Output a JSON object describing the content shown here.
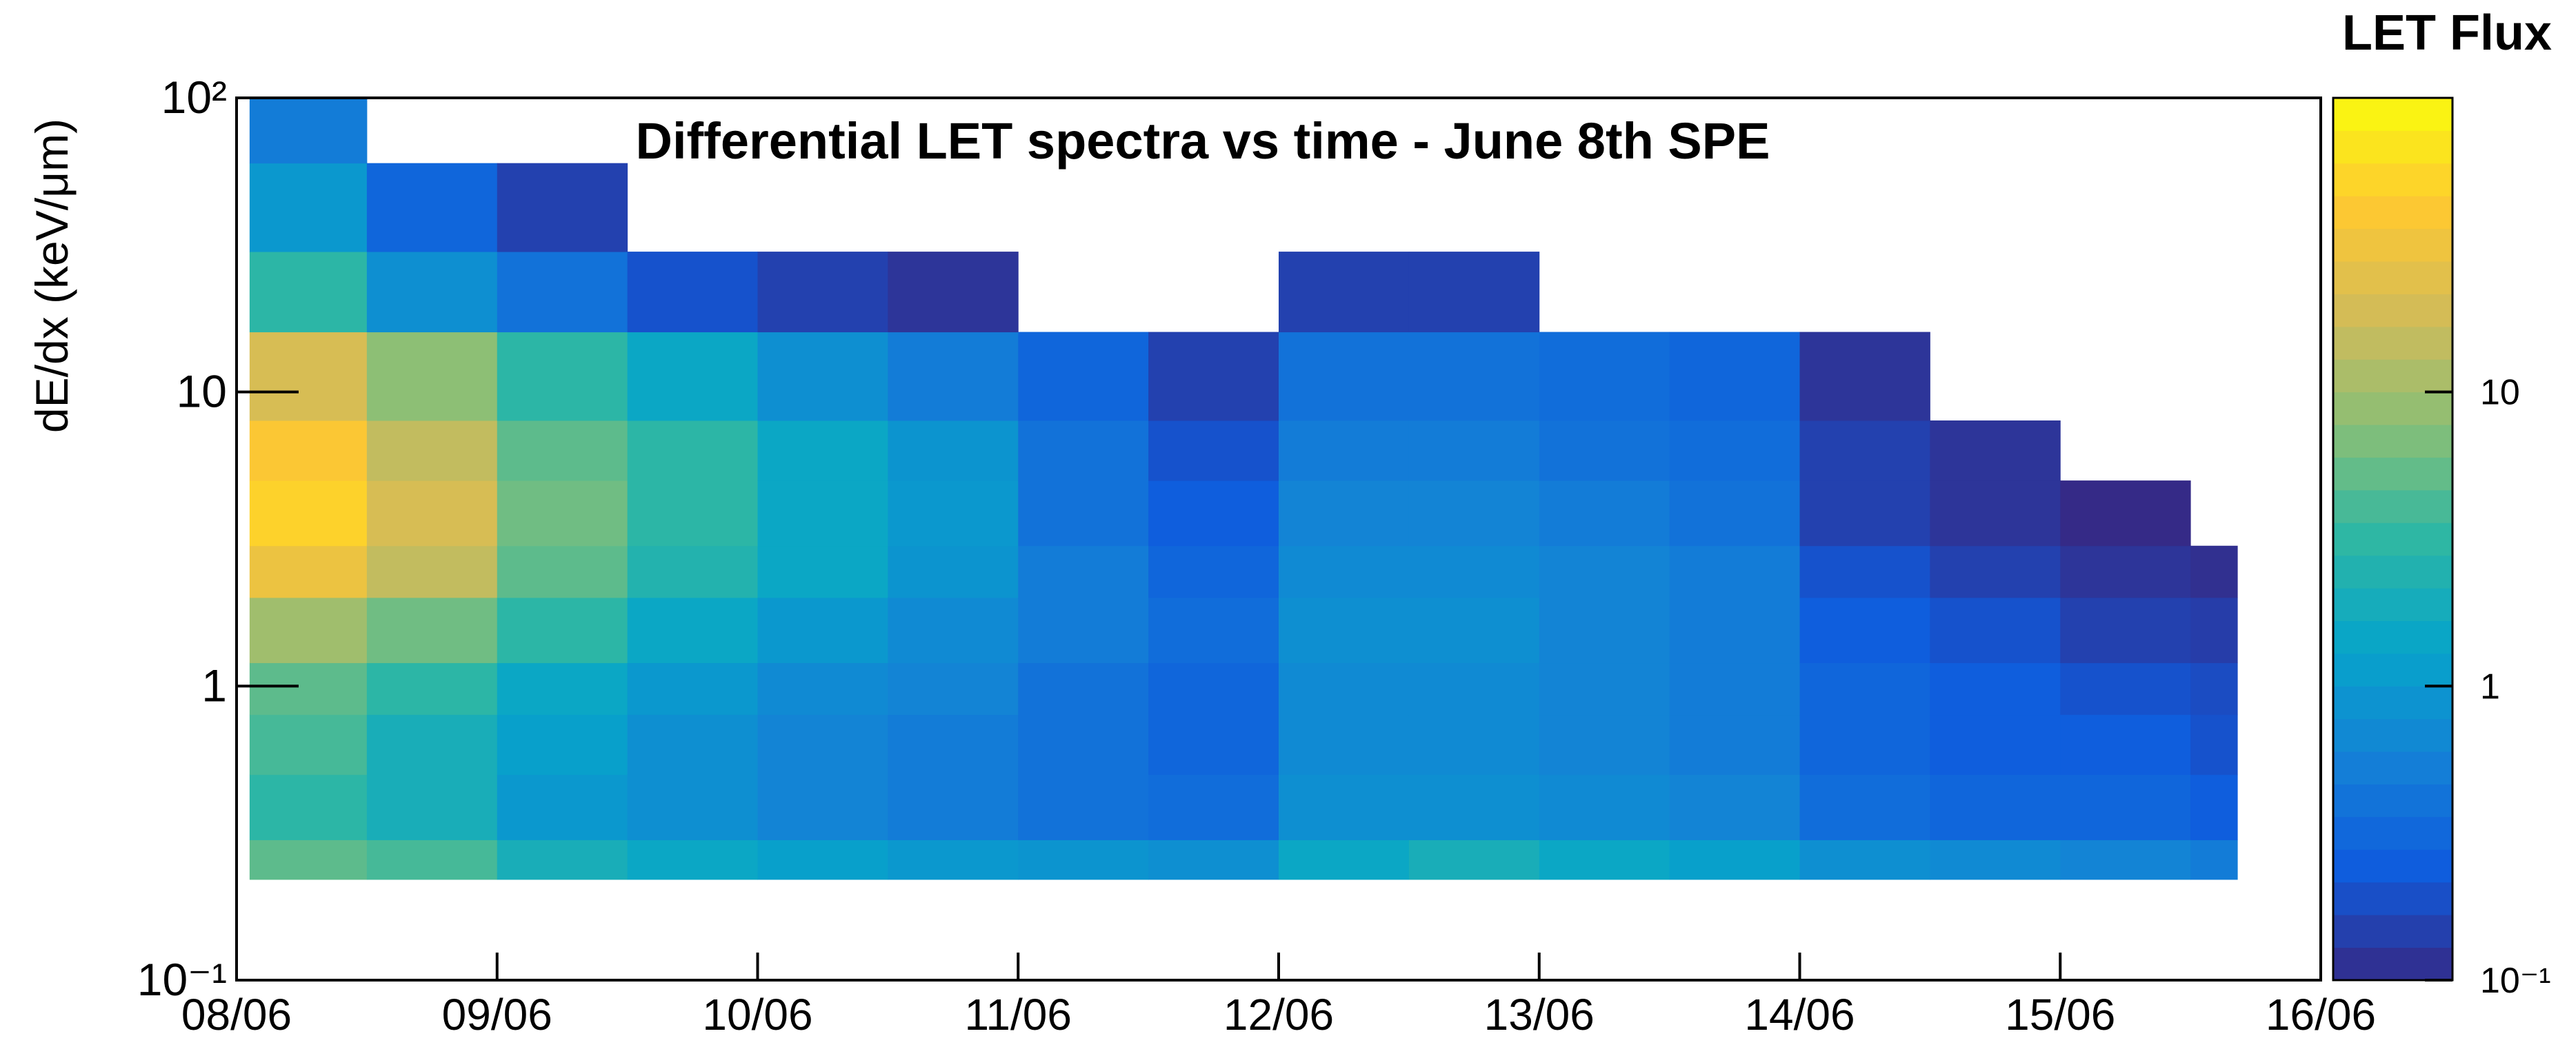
{
  "chart_data": {
    "type": "heatmap",
    "title": "Differential LET spectra vs time - June 8th SPE",
    "y_label": "dE/dx (keV/μm)",
    "colorbar_label": "LET Flux",
    "x_bins": [
      0.05,
      0.5,
      1,
      1.5,
      2,
      2.5,
      3,
      3.5,
      4,
      4.5,
      5,
      5.5,
      6,
      6.5,
      7,
      7.5,
      7.68
    ],
    "y_bins": [
      0.22,
      0.3,
      0.5,
      0.8,
      1.2,
      2,
      3,
      5,
      8,
      16,
      30,
      60,
      100
    ],
    "values": [
      [
        5,
        3,
        4,
        5,
        10,
        30,
        50,
        40,
        20,
        3,
        1,
        0.5
      ],
      [
        4,
        2,
        2,
        3,
        6,
        15,
        20,
        15,
        8,
        0.8,
        0.3,
        null
      ],
      [
        2,
        1,
        1.2,
        1.5,
        3,
        5,
        6,
        5,
        3,
        0.4,
        0.15,
        null
      ],
      [
        1.5,
        0.8,
        0.8,
        1,
        1.5,
        2.5,
        3,
        3,
        1.5,
        0.2,
        null,
        null
      ],
      [
        1.2,
        0.6,
        0.6,
        0.7,
        1,
        1.5,
        1.5,
        1.5,
        0.8,
        0.15,
        null,
        null
      ],
      [
        1,
        0.5,
        0.5,
        0.6,
        0.7,
        0.9,
        1,
        0.9,
        0.5,
        0.12,
        null,
        null
      ],
      [
        0.9,
        0.4,
        0.4,
        0.4,
        0.5,
        0.5,
        0.4,
        0.4,
        0.3,
        null,
        null,
        null
      ],
      [
        0.8,
        0.35,
        0.3,
        0.3,
        0.35,
        0.3,
        0.25,
        0.2,
        0.15,
        null,
        null,
        null
      ],
      [
        1.5,
        0.8,
        0.7,
        0.7,
        0.8,
        0.7,
        0.6,
        0.5,
        0.4,
        0.15,
        null,
        null
      ],
      [
        2,
        0.8,
        0.7,
        0.7,
        0.8,
        0.7,
        0.6,
        0.5,
        0.4,
        0.15,
        null,
        null
      ],
      [
        1.5,
        0.7,
        0.6,
        0.6,
        0.6,
        0.6,
        0.5,
        0.4,
        0.35,
        null,
        null,
        null
      ],
      [
        1.2,
        0.6,
        0.5,
        0.5,
        0.5,
        0.5,
        0.4,
        0.35,
        0.3,
        null,
        null,
        null
      ],
      [
        0.8,
        0.35,
        0.3,
        0.3,
        0.25,
        0.2,
        0.15,
        0.15,
        0.12,
        null,
        null,
        null
      ],
      [
        0.7,
        0.3,
        0.25,
        0.25,
        0.2,
        0.15,
        0.12,
        0.12,
        null,
        null,
        null,
        null
      ],
      [
        0.6,
        0.3,
        0.25,
        0.2,
        0.15,
        0.12,
        0.1,
        null,
        null,
        null,
        null,
        null
      ],
      [
        0.5,
        0.25,
        0.2,
        0.18,
        0.14,
        0.11,
        null,
        null,
        null,
        null,
        null,
        null
      ]
    ],
    "xlim": [
      0,
      8
    ],
    "xticks": [
      {
        "value": 0,
        "label": "08/06"
      },
      {
        "value": 1,
        "label": "09/06"
      },
      {
        "value": 2,
        "label": "10/06"
      },
      {
        "value": 3,
        "label": "11/06"
      },
      {
        "value": 4,
        "label": "12/06"
      },
      {
        "value": 5,
        "label": "13/06"
      },
      {
        "value": 6,
        "label": "14/06"
      },
      {
        "value": 7,
        "label": "15/06"
      },
      {
        "value": 8,
        "label": "16/06"
      }
    ],
    "ylim": [
      0.1,
      100
    ],
    "yticks": [
      {
        "value": 0.1,
        "label": "10⁻¹"
      },
      1,
      10,
      {
        "value": 100,
        "label": "10²"
      }
    ],
    "log_y": true,
    "zlim": [
      0.1,
      100
    ],
    "zticks": [
      {
        "value": 0.1,
        "label": "10⁻¹"
      },
      1,
      10
    ],
    "log_z": true,
    "palette": [
      "#352a87",
      "#0f5cdd",
      "#1481d6",
      "#06a4ca",
      "#2eb7a4",
      "#87bf77",
      "#d1bb59",
      "#fec832",
      "#f9fb0e"
    ]
  }
}
